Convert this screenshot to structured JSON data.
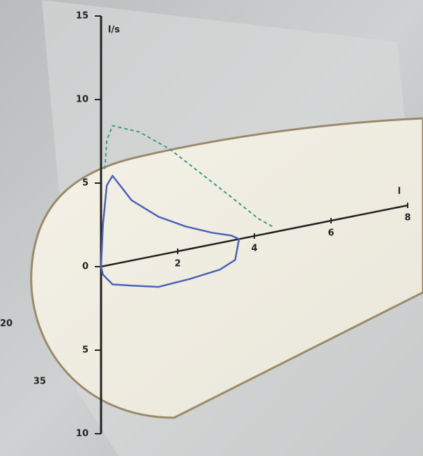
{
  "chart_data": {
    "type": "line",
    "y_unit": "l/s",
    "x_unit": "l",
    "annotations": [
      "20",
      "35"
    ],
    "xlim": [
      0,
      8
    ],
    "xticks": [
      2,
      4,
      6,
      8
    ],
    "ylim": [
      -10,
      15
    ],
    "yticks": [
      {
        "value": -10,
        "label": "10"
      },
      {
        "value": -5,
        "label": "5"
      },
      0,
      5,
      10,
      15
    ],
    "series": [
      {
        "color": "#4a62b8",
        "dash": false,
        "x": [
          0,
          0.05,
          0.15,
          0.3,
          0.8,
          1.5,
          2.2,
          2.9,
          3.4,
          3.6,
          3.5,
          3.1,
          2.3,
          1.5,
          0.8,
          0.3,
          0.05,
          0
        ],
        "values": [
          0,
          2.5,
          4.8,
          5.3,
          3.6,
          2.3,
          1.4,
          0.7,
          0.3,
          0,
          -1.2,
          -1.6,
          -1.8,
          -1.9,
          -1.5,
          -1.2,
          -0.5,
          0
        ]
      },
      {
        "color": "#3f9a80",
        "dash": true,
        "x": [
          0.1,
          0.15,
          0.3,
          1,
          1.8,
          2.6,
          3.4,
          4.1,
          4.5
        ],
        "values": [
          5.8,
          7.5,
          8.3,
          7.6,
          6.2,
          4.4,
          2.6,
          1,
          0.3
        ]
      }
    ]
  }
}
